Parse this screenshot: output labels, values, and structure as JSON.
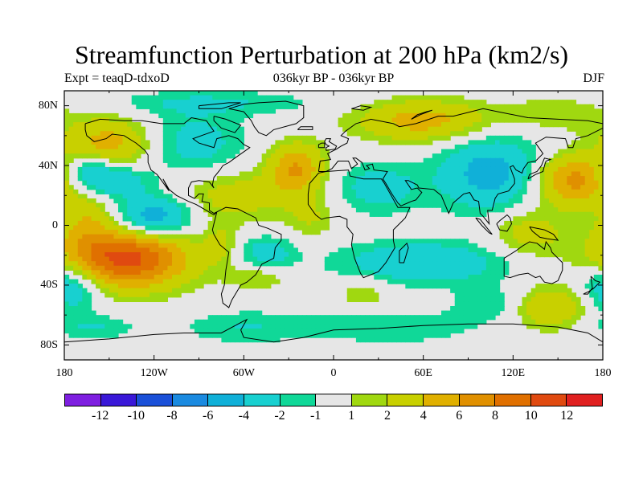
{
  "title": "Streamfunction Perturbation at 200 hPa (km2/s)",
  "subtitle_left": "Expt = teaqD-tdxoD",
  "subtitle_center": "036kyr BP - 036kyr BP",
  "subtitle_right": "DJF",
  "lat_ticks": [
    "80N",
    "40N",
    "0",
    "40S",
    "80S"
  ],
  "lon_ticks": [
    "180",
    "120W",
    "60W",
    "0",
    "60E",
    "120E",
    "180"
  ],
  "colorbar": {
    "colors": [
      "#7e1fe0",
      "#3a18d8",
      "#1a50d8",
      "#1a8ae0",
      "#10b0d8",
      "#18d0d0",
      "#10d898",
      "#e6e6e6",
      "#a0d810",
      "#c8d000",
      "#e0b000",
      "#e09000",
      "#e07000",
      "#e04a10",
      "#e02020"
    ],
    "labels": [
      "-12",
      "-10",
      "-8",
      "-6",
      "-4",
      "-2",
      "-1",
      "1",
      "2",
      "4",
      "6",
      "8",
      "10",
      "12"
    ]
  },
  "chart_data": {
    "type": "heatmap",
    "title": "Streamfunction Perturbation at 200 hPa (km2/s)",
    "units": "km2/s",
    "season": "DJF",
    "xlim": [
      -180,
      180
    ],
    "ylim": [
      -90,
      90
    ],
    "levels": [
      -12,
      -10,
      -8,
      -6,
      -4,
      -2,
      -1,
      1,
      2,
      4,
      6,
      8,
      10,
      12
    ],
    "features": [
      {
        "lon": -140,
        "lat": -22,
        "value": 11,
        "spread_lon": 30,
        "spread_lat": 14
      },
      {
        "lon": -150,
        "lat": 55,
        "value": 5,
        "spread_lon": 22,
        "spread_lat": 12
      },
      {
        "lon": -165,
        "lat": 5,
        "value": 3,
        "spread_lon": 12,
        "spread_lat": 14
      },
      {
        "lon": -120,
        "lat": 5,
        "value": -6,
        "spread_lon": 18,
        "spread_lat": 10
      },
      {
        "lon": -150,
        "lat": 30,
        "value": -4,
        "spread_lon": 18,
        "spread_lat": 8
      },
      {
        "lon": -95,
        "lat": 55,
        "value": -3,
        "spread_lon": 25,
        "spread_lat": 15
      },
      {
        "lon": -80,
        "lat": 82,
        "value": -2,
        "spread_lon": 55,
        "spread_lat": 6
      },
      {
        "lon": -25,
        "lat": 38,
        "value": 6,
        "spread_lon": 13,
        "spread_lat": 12
      },
      {
        "lon": -65,
        "lat": 20,
        "value": 3,
        "spread_lon": 28,
        "spread_lat": 12
      },
      {
        "lon": -15,
        "lat": 5,
        "value": 2,
        "spread_lon": 12,
        "spread_lat": 10
      },
      {
        "lon": -45,
        "lat": -18,
        "value": -3,
        "spread_lon": 14,
        "spread_lat": 8
      },
      {
        "lon": -75,
        "lat": -12,
        "value": 2,
        "spread_lon": 8,
        "spread_lat": 10
      },
      {
        "lon": -50,
        "lat": -35,
        "value": 2,
        "spread_lon": 14,
        "spread_lat": 6
      },
      {
        "lon": -175,
        "lat": -40,
        "value": -5,
        "spread_lon": 14,
        "spread_lat": 12
      },
      {
        "lon": -165,
        "lat": 38,
        "value": -3,
        "spread_lon": 12,
        "spread_lat": 8
      },
      {
        "lon": 60,
        "lat": 70,
        "value": 5,
        "spread_lon": 32,
        "spread_lat": 10
      },
      {
        "lon": 105,
        "lat": 35,
        "value": -5,
        "spread_lon": 25,
        "spread_lat": 18
      },
      {
        "lon": 30,
        "lat": 25,
        "value": -3,
        "spread_lon": 20,
        "spread_lat": 12
      },
      {
        "lon": 160,
        "lat": 30,
        "value": 7,
        "spread_lon": 18,
        "spread_lat": 12
      },
      {
        "lon": 130,
        "lat": -5,
        "value": 3,
        "spread_lon": 18,
        "spread_lat": 12
      },
      {
        "lon": 150,
        "lat": 75,
        "value": 2,
        "spread_lon": 25,
        "spread_lat": 8
      },
      {
        "lon": 60,
        "lat": -25,
        "value": -4,
        "spread_lon": 40,
        "spread_lat": 10
      },
      {
        "lon": 145,
        "lat": -55,
        "value": 4,
        "spread_lon": 18,
        "spread_lat": 10
      },
      {
        "lon": 20,
        "lat": -45,
        "value": 2,
        "spread_lon": 12,
        "spread_lat": 8
      },
      {
        "lon": -60,
        "lat": -68,
        "value": -2,
        "spread_lon": 30,
        "spread_lat": 8
      },
      {
        "lon": 40,
        "lat": -68,
        "value": -2,
        "spread_lon": 40,
        "spread_lat": 8
      },
      {
        "lon": -160,
        "lat": -68,
        "value": -2,
        "spread_lon": 20,
        "spread_lat": 6
      },
      {
        "lon": 105,
        "lat": -52,
        "value": -2,
        "spread_lon": 18,
        "spread_lat": 8
      }
    ]
  }
}
